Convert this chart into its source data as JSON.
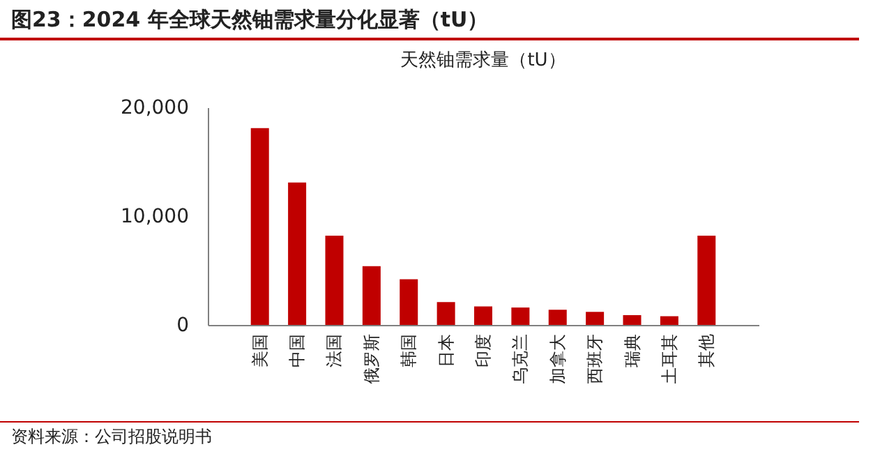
{
  "chart_data": {
    "type": "bar",
    "title": "图23：2024 年全球天然铀需求量分化显著（tU）",
    "subtitle": "天然铀需求量（tU）",
    "categories": [
      "美国",
      "中国",
      "法国",
      "俄罗斯",
      "韩国",
      "日本",
      "印度",
      "乌克兰",
      "加拿大",
      "西班牙",
      "瑞典",
      "土耳其",
      "其他"
    ],
    "values": [
      18100,
      13100,
      8200,
      5400,
      4200,
      2100,
      1700,
      1600,
      1400,
      1200,
      900,
      800,
      8200
    ],
    "color": "#c00000",
    "ylim": [
      0,
      20000
    ],
    "yticks": [
      0,
      {
        "value": 10000,
        "label": "10,000"
      },
      {
        "value": 20000,
        "label": "20,000"
      }
    ],
    "grid": false,
    "annotations": [
      "资料来源：公司招股说明书"
    ]
  }
}
